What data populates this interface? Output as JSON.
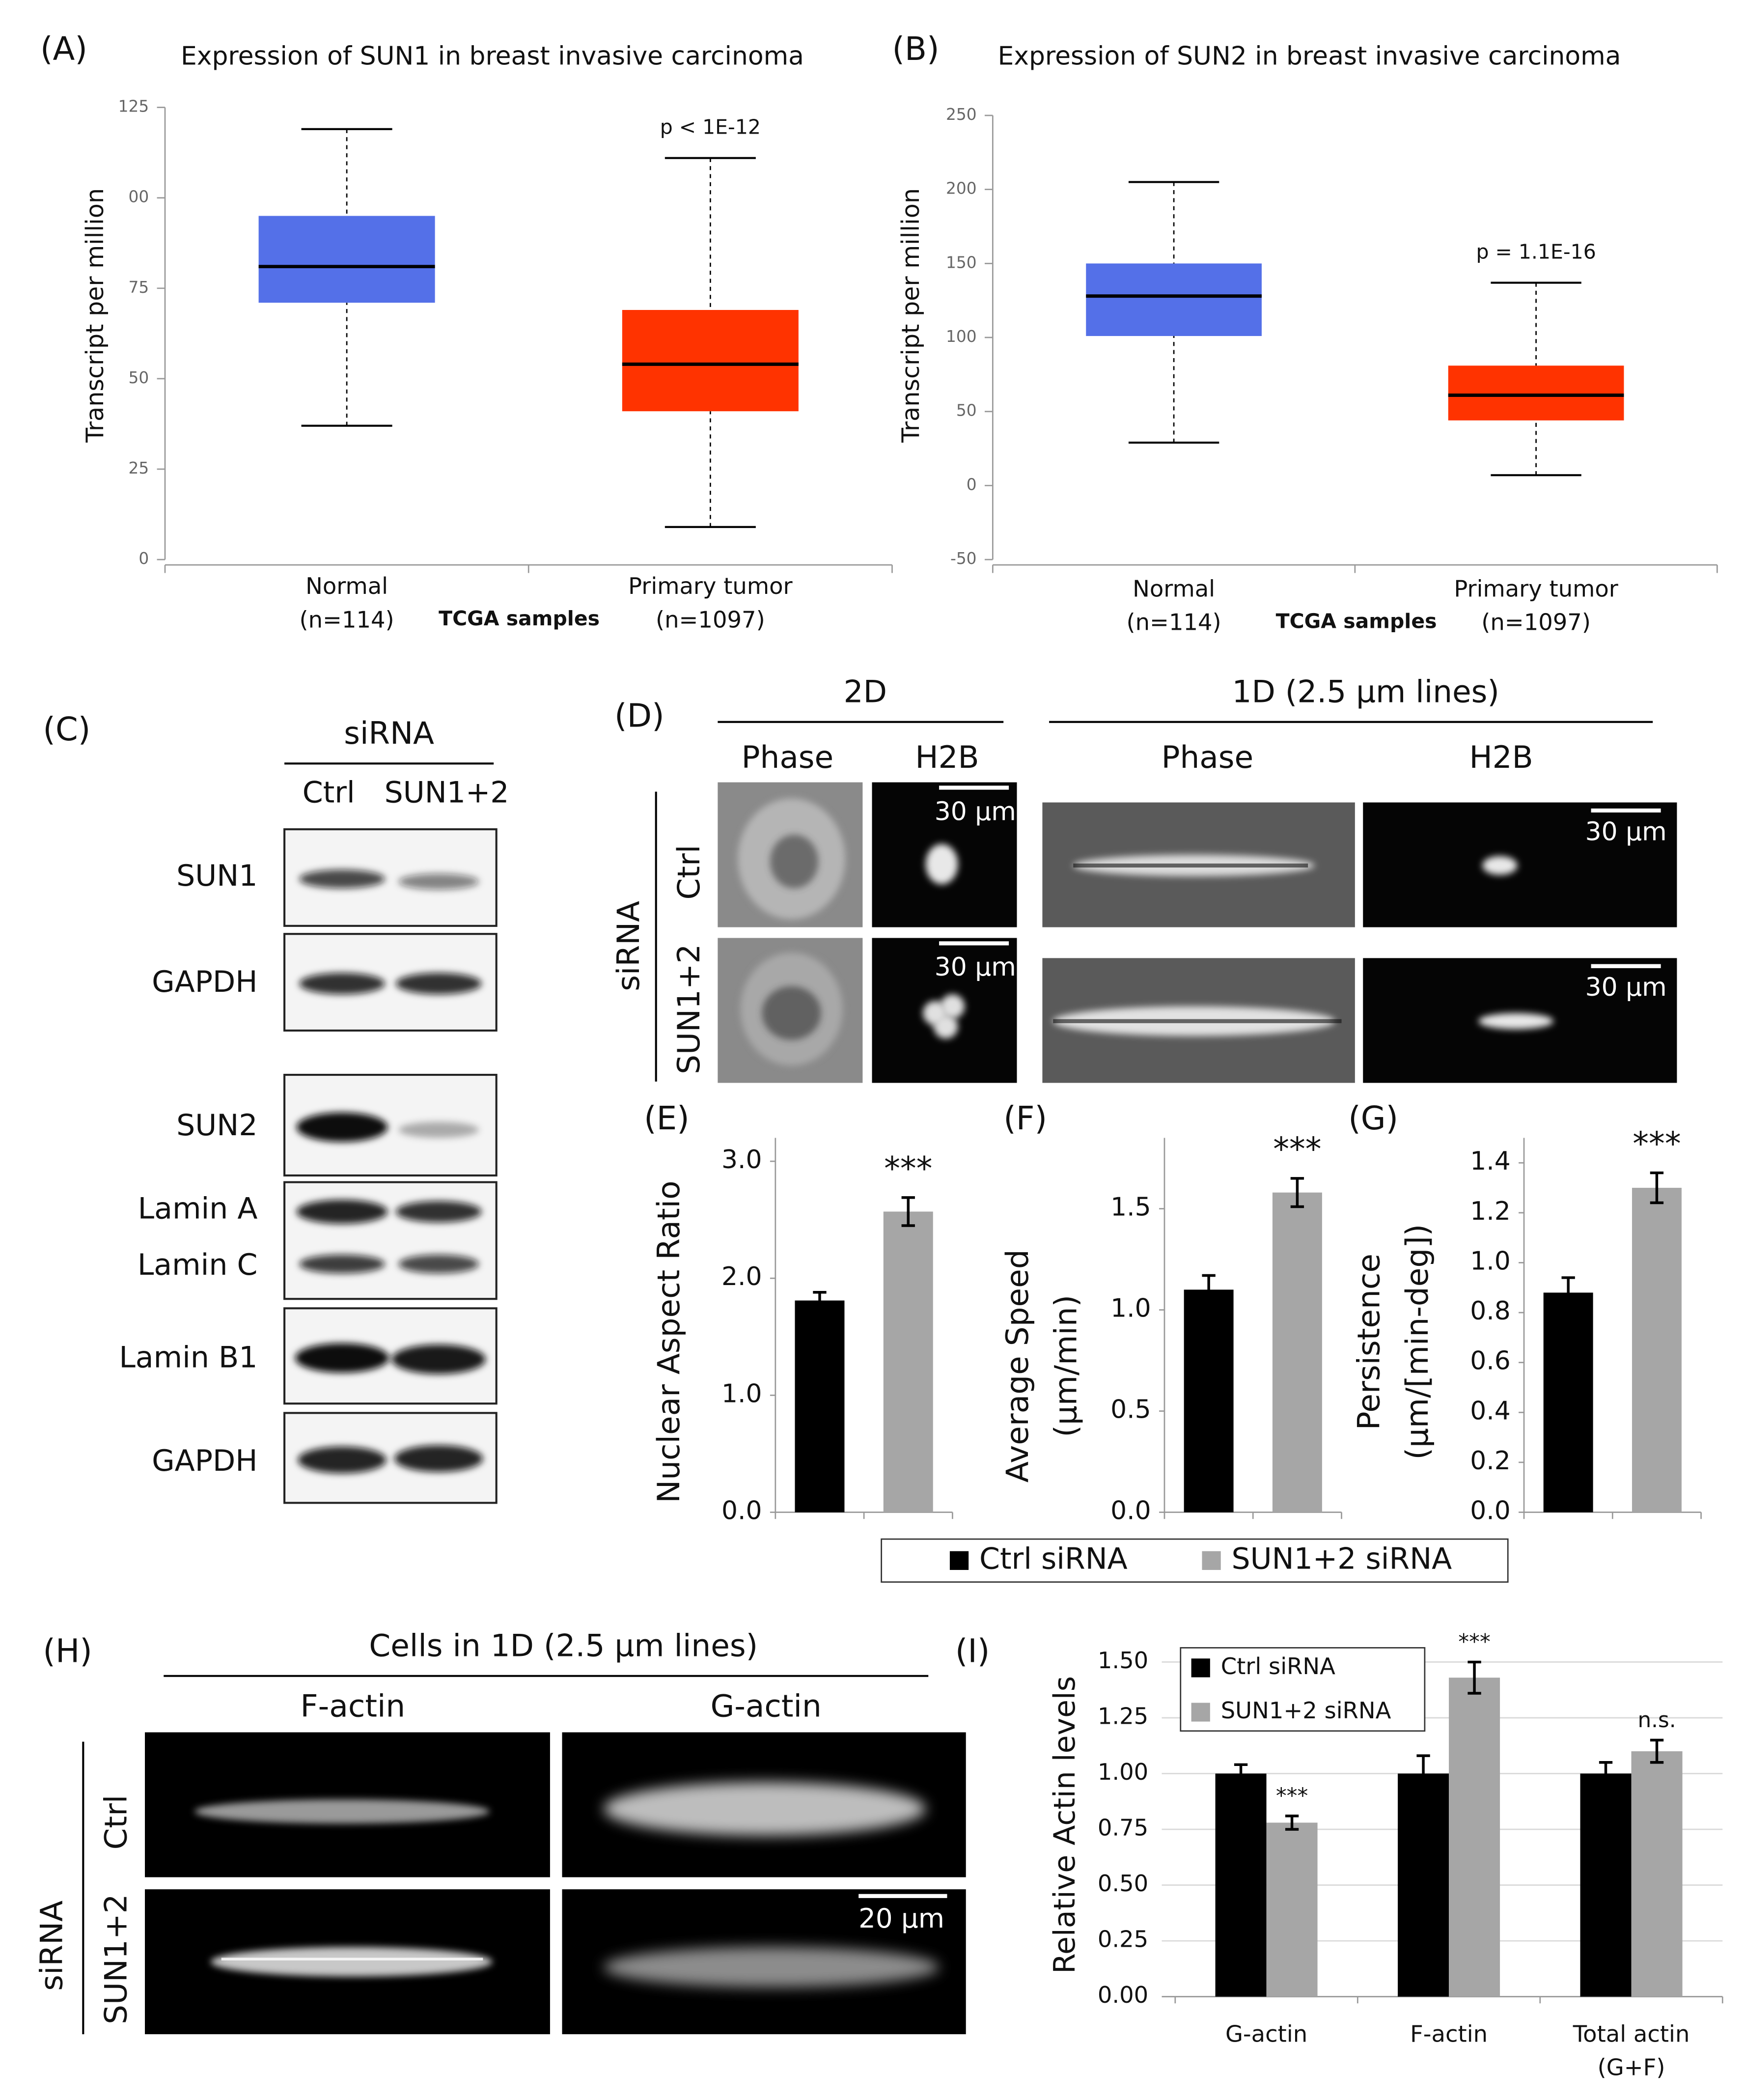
{
  "chart_data": [
    {
      "type": "box",
      "panel": "(A)",
      "title": "Expression of SUN1 in breast invasive carcinoma",
      "ylabel": "Transcript per million",
      "xlabel": "TCGA samples",
      "categories": [
        [
          "Normal",
          "(n=114)"
        ],
        [
          "Primary tumor",
          "(n=1097)"
        ]
      ],
      "whisker_low": [
        37,
        9
      ],
      "q1": [
        71,
        41
      ],
      "median": [
        81,
        54
      ],
      "q3": [
        95,
        69
      ],
      "whisker_high": [
        119,
        111
      ],
      "colors": [
        "#5470e8",
        "#ff3300"
      ],
      "annotation": "p < 1E-12",
      "ylim": [
        0,
        125
      ],
      "yticks": [
        0,
        25,
        50,
        75,
        {
          "value": 100,
          "label": "00"
        },
        125
      ]
    },
    {
      "type": "box",
      "panel": "(B)",
      "title": "Expression of SUN2 in breast invasive carcinoma",
      "ylabel": "Transcript per million",
      "xlabel": "TCGA samples",
      "categories": [
        [
          "Normal",
          "(n=114)"
        ],
        [
          "Primary tumor",
          "(n=1097)"
        ]
      ],
      "whisker_low": [
        29,
        7
      ],
      "q1": [
        101,
        44
      ],
      "median": [
        128,
        61
      ],
      "q3": [
        150,
        81
      ],
      "whisker_high": [
        205,
        137
      ],
      "colors": [
        "#5470e8",
        "#ff3300"
      ],
      "annotation": "p = 1.1E-16",
      "ylim": [
        -50,
        250
      ],
      "yticks": [
        -50,
        0,
        50,
        100,
        150,
        200,
        250
      ]
    },
    {
      "type": "bar",
      "panel": "(E)",
      "ylabel": "Nuclear Aspect Ratio",
      "categories": [
        null,
        null
      ],
      "values": [
        1.81,
        2.57
      ],
      "errors": [
        0.07,
        0.12
      ],
      "annotation": "***",
      "ylim": [
        0,
        3.2
      ],
      "yticks": [
        {
          "value": 0,
          "label": "0.0"
        },
        {
          "value": 1,
          "label": "1.0"
        },
        {
          "value": 2,
          "label": "2.0"
        },
        {
          "value": 3,
          "label": "3.0"
        }
      ]
    },
    {
      "type": "bar",
      "panel": "(F)",
      "ylabel": [
        "Average Speed",
        "(µm/min)"
      ],
      "categories": [
        null,
        null
      ],
      "values": [
        1.1,
        1.58
      ],
      "errors": [
        0.07,
        0.07
      ],
      "annotation": "***",
      "ylim": [
        0,
        1.85
      ],
      "yticks": [
        {
          "value": 0,
          "label": "0.0"
        },
        0.5,
        {
          "value": 1,
          "label": "1.0"
        },
        1.5
      ]
    },
    {
      "type": "bar",
      "panel": "(G)",
      "ylabel": [
        "Persistence",
        "(µm/[min-deg])"
      ],
      "categories": [
        null,
        null
      ],
      "values": [
        0.88,
        1.3
      ],
      "errors": [
        0.06,
        0.06
      ],
      "annotation": "***",
      "ylim": [
        0,
        1.5
      ],
      "yticks": [
        {
          "value": 0,
          "label": "0.0"
        },
        0.2,
        0.4,
        0.6,
        0.8,
        {
          "value": 1,
          "label": "1.0"
        },
        1.2,
        1.4
      ]
    },
    {
      "type": "grouped_bar",
      "panel": "(I)",
      "ylabel": "Relative Actin levels",
      "categories": [
        "G-actin",
        "F-actin",
        [
          "Total actin",
          "(G+F)"
        ]
      ],
      "series": [
        {
          "name": "Ctrl siRNA",
          "color": "#000000",
          "values": [
            1.0,
            1.0,
            1.0
          ],
          "errors": [
            0.04,
            0.08,
            0.05
          ]
        },
        {
          "name": "SUN1+2 siRNA",
          "color": "#a6a6a6",
          "values": [
            0.78,
            1.43,
            1.1
          ],
          "errors": [
            0.03,
            0.07,
            0.05
          ]
        }
      ],
      "annotations": [
        "***",
        "***",
        "n.s."
      ],
      "grid": true,
      "ylim": [
        0,
        1.6
      ],
      "yticks": [
        {
          "value": 0,
          "label": "0.00"
        },
        0.25,
        {
          "value": 0.5,
          "label": "0.50"
        },
        0.75,
        {
          "value": 1,
          "label": "1.00"
        },
        1.25,
        {
          "value": 1.5,
          "label": "1.50"
        }
      ]
    }
  ],
  "legend": [
    {
      "name": "Ctrl siRNA",
      "color": "#000000"
    },
    {
      "name": "SUN1+2 siRNA",
      "color": "#a6a6a6"
    }
  ],
  "panel_c": {
    "panel": "(C)",
    "header": "siRNA",
    "lanes": [
      "Ctrl",
      "SUN1+2"
    ],
    "rows": [
      "SUN1",
      "GAPDH",
      "SUN2",
      "Lamin A",
      "Lamin C",
      "Lamin B1",
      "GAPDH"
    ]
  },
  "panel_d": {
    "panel": "(D)",
    "groups": [
      "2D",
      "1D (2.5 µm lines)"
    ],
    "columns": [
      "Phase",
      "H2B",
      "Phase",
      "H2B"
    ],
    "side": "siRNA",
    "rows": [
      "Ctrl",
      "SUN1+2"
    ],
    "scale_bars": [
      "30 µm",
      "30 µm",
      "30 µm",
      "30 µm"
    ]
  },
  "panel_h": {
    "panel": "(H)",
    "header": "Cells in 1D (2.5 µm lines)",
    "columns": [
      "F-actin",
      "G-actin"
    ],
    "side": "siRNA",
    "rows": [
      "Ctrl",
      "SUN1+2"
    ],
    "scale_bar": "20 µm"
  }
}
